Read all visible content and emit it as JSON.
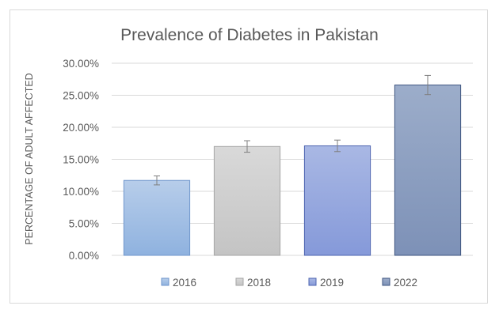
{
  "chart_data": {
    "type": "bar",
    "title": "Prevalence of Diabetes in Pakistan",
    "xlabel": "",
    "ylabel": "PERCENTAGE OF ADULT AFFECTED",
    "ylim": [
      0,
      30
    ],
    "y_ticks": [
      "0.00%",
      "5.00%",
      "10.00%",
      "15.00%",
      "20.00%",
      "25.00%",
      "30.00%"
    ],
    "y_tick_values": [
      0,
      5,
      10,
      15,
      20,
      25,
      30
    ],
    "grid": true,
    "legend_position": "bottom",
    "series": [
      {
        "name": "2016",
        "value": 11.7,
        "error": 0.7,
        "color_top": "#b7cdea",
        "color_bottom": "#8fb2df",
        "stroke": "#6f96cc"
      },
      {
        "name": "2018",
        "value": 17.0,
        "error": 0.9,
        "color_top": "#d9d9d9",
        "color_bottom": "#c4c4c4",
        "stroke": "#a6a6a6"
      },
      {
        "name": "2019",
        "value": 17.1,
        "error": 0.9,
        "color_top": "#a9b8e4",
        "color_bottom": "#8599d9",
        "stroke": "#4e64b0"
      },
      {
        "name": "2022",
        "value": 26.6,
        "error": 1.5,
        "color_top": "#9cadca",
        "color_bottom": "#7d91b7",
        "stroke": "#3f5681"
      }
    ]
  }
}
